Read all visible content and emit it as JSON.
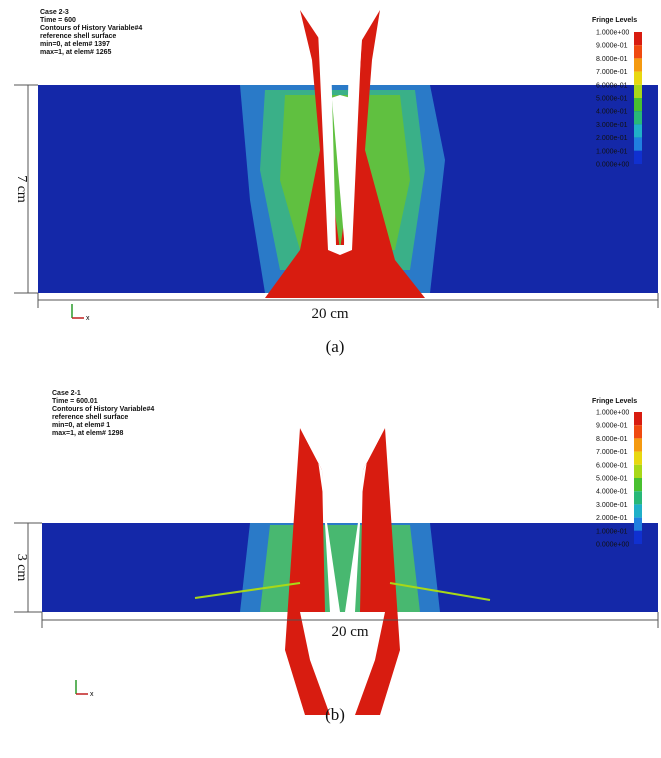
{
  "panels": [
    {
      "header": [
        "Case 2-3",
        "Time =      600",
        "Contours of History Variable#4",
        "reference shell surface",
        " min=0, at elem# 1397",
        " max=1, at elem# 1265"
      ],
      "fringe_title": "Fringe Levels",
      "fringe_levels": [
        "1.000e+00",
        "9.000e-01",
        "8.000e-01",
        "7.000e-01",
        "6.000e-01",
        "5.000e-01",
        "4.000e-01",
        "3.000e-01",
        "2.000e-01",
        "1.000e-01",
        "0.000e+00"
      ],
      "height_label": "7 cm",
      "width_label": "20 cm",
      "caption": "(a)",
      "triad_label": "x"
    },
    {
      "header": [
        "Case 2-1",
        "Time =     600.01",
        "Contours of History Variable#4",
        "reference shell surface",
        " min=0, at elem# 1",
        " max=1, at elem# 1298"
      ],
      "fringe_title": "Fringe Levels",
      "fringe_levels": [
        "1.000e+00",
        "9.000e-01",
        "8.000e-01",
        "7.000e-01",
        "6.000e-01",
        "5.000e-01",
        "4.000e-01",
        "3.000e-01",
        "2.000e-01",
        "1.000e-01",
        "0.000e+00"
      ],
      "height_label": "3 cm",
      "width_label": "20 cm",
      "caption": "(b)",
      "triad_label": "x"
    }
  ],
  "fringe_colors": [
    "#d81c10",
    "#f04a10",
    "#f59a10",
    "#e8d810",
    "#a8d818",
    "#48c030",
    "#28b878",
    "#20b0c8",
    "#2080e0",
    "#1030d0"
  ]
}
